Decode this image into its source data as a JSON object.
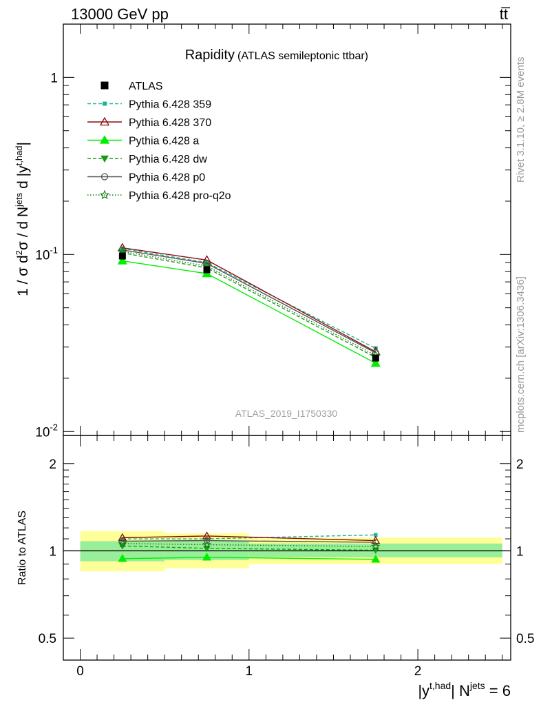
{
  "header": {
    "left": "13000 GeV pp",
    "right": "tt̅"
  },
  "side_labels": {
    "rivet": "Rivet 3.1.10, ≥ 2.8M events",
    "source": "mcplots.cern.ch [arXiv:1306.3436]"
  },
  "chart_data": [
    {
      "type": "line",
      "panel": "main",
      "title": "Rapidity",
      "subtitle": "(ATLAS semileptonic ttbar)",
      "watermark": "ATLAS_2019_I1750330",
      "ylabel": "1 / σ d²σ / d N^jets d |y^t,had|",
      "yscale": "log",
      "ylim": [
        0.0095,
        2.0
      ],
      "xlim": [
        -0.1,
        2.55
      ],
      "yticks": [
        {
          "v": 1,
          "label": "1"
        },
        {
          "v": 0.1,
          "label": "10^-1"
        },
        {
          "v": 0.01,
          "label": "10^-2"
        }
      ],
      "bins": [
        [
          0,
          0.5
        ],
        [
          0.5,
          1.0
        ],
        [
          1.0,
          2.5
        ]
      ],
      "x": [
        0.25,
        0.75,
        1.75
      ],
      "series": [
        {
          "name": "ATLAS",
          "color": "#000000",
          "dash": "",
          "marker": "square",
          "values": [
            0.098,
            0.082,
            0.026
          ]
        },
        {
          "name": "Pythia 6.428 359",
          "color": "#1fb393",
          "dash": "5,3",
          "marker": "smallsquare",
          "values": [
            0.108,
            0.09,
            0.0295
          ]
        },
        {
          "name": "Pythia 6.428 370",
          "color": "#8b0a0a",
          "dash": "",
          "marker": "triangle-open",
          "values": [
            0.109,
            0.093,
            0.0282
          ]
        },
        {
          "name": "Pythia 6.428 a",
          "color": "#00ee00",
          "dash": "",
          "marker": "triangle",
          "values": [
            0.092,
            0.078,
            0.0243
          ]
        },
        {
          "name": "Pythia 6.428 dw",
          "color": "#1c9a1c",
          "dash": "5,3",
          "marker": "triangle-down",
          "values": [
            0.102,
            0.084,
            0.0262
          ]
        },
        {
          "name": "Pythia 6.428 p0",
          "color": "#555555",
          "dash": "",
          "marker": "circle-open",
          "values": [
            0.106,
            0.089,
            0.0278
          ]
        },
        {
          "name": "Pythia 6.428 pro-q2o",
          "color": "#117a11",
          "dash": "1.5,2.5",
          "marker": "star",
          "values": [
            0.104,
            0.086,
            0.0269
          ]
        }
      ]
    },
    {
      "type": "line",
      "panel": "ratio",
      "ylabel": "Ratio to ATLAS",
      "xlabel": "|y^t,had| N^jets = 6",
      "ylim": [
        0.42,
        2.5
      ],
      "xlim": [
        -0.1,
        2.55
      ],
      "yticks": [
        {
          "v": 2,
          "label": "2"
        },
        {
          "v": 1,
          "label": "1"
        },
        {
          "v": 0.5,
          "label": "0.5"
        }
      ],
      "xticks": [
        {
          "v": 0,
          "label": "0"
        },
        {
          "v": 1,
          "label": "1"
        },
        {
          "v": 2,
          "label": "2"
        }
      ],
      "bands": [
        {
          "x0": 0.0,
          "x1": 0.5,
          "stat": [
            0.92,
            1.08
          ],
          "total": [
            0.85,
            1.17
          ]
        },
        {
          "x0": 0.5,
          "x1": 1.0,
          "stat": [
            0.93,
            1.08
          ],
          "total": [
            0.87,
            1.15
          ]
        },
        {
          "x0": 1.0,
          "x1": 2.5,
          "stat": [
            0.95,
            1.06
          ],
          "total": [
            0.9,
            1.11
          ]
        }
      ],
      "x": [
        0.25,
        0.75,
        1.75
      ],
      "series": [
        {
          "name": "Pythia 6.428 359",
          "color": "#1fb393",
          "dash": "5,3",
          "marker": "smallsquare",
          "values": [
            1.1,
            1.1,
            1.135
          ]
        },
        {
          "name": "Pythia 6.428 370",
          "color": "#8b0a0a",
          "dash": "",
          "marker": "triangle-open",
          "values": [
            1.11,
            1.125,
            1.085
          ]
        },
        {
          "name": "Pythia 6.428 a",
          "color": "#00ee00",
          "dash": "",
          "marker": "triangle",
          "values": [
            0.94,
            0.95,
            0.935
          ]
        },
        {
          "name": "Pythia 6.428 dw",
          "color": "#1c9a1c",
          "dash": "5,3",
          "marker": "triangle-down",
          "values": [
            1.04,
            1.02,
            1.005
          ]
        },
        {
          "name": "Pythia 6.428 p0",
          "color": "#555555",
          "dash": "",
          "marker": "circle-open",
          "values": [
            1.08,
            1.085,
            1.07
          ]
        },
        {
          "name": "Pythia 6.428 pro-q2o",
          "color": "#117a11",
          "dash": "1.5,2.5",
          "marker": "star",
          "values": [
            1.06,
            1.05,
            1.035
          ]
        }
      ]
    }
  ]
}
